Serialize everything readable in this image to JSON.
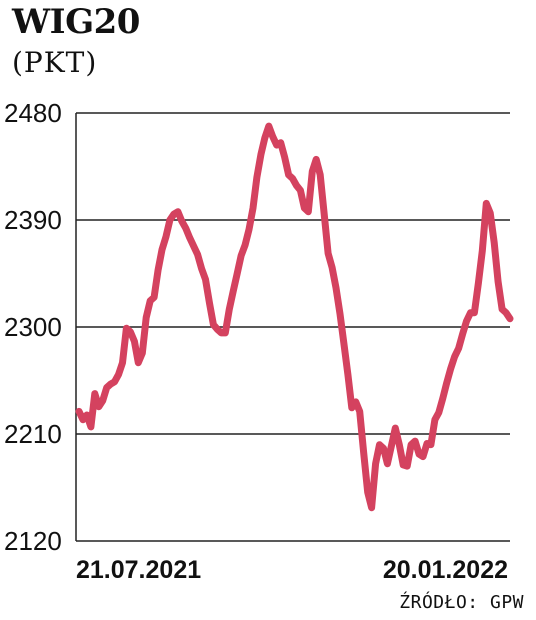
{
  "chart_data": {
    "type": "line",
    "title": "WIG20",
    "ylabel": "(PKT)",
    "source": "ŹRÓDŁO: GPW",
    "ylim": [
      2120,
      2480
    ],
    "yticks": [
      2480,
      2390,
      2300,
      2210,
      2120
    ],
    "xtick_labels": [
      "21.07.2021",
      "20.01.2022"
    ],
    "grid": true,
    "line_color": "#d4425f",
    "series": [
      {
        "values": [
          2229,
          2222,
          2226,
          2216,
          2244,
          2233,
          2238,
          2249,
          2252,
          2254,
          2260,
          2270,
          2299,
          2296,
          2288,
          2270,
          2278,
          2308,
          2322,
          2325,
          2348,
          2365,
          2376,
          2390,
          2395,
          2397,
          2389,
          2383,
          2375,
          2368,
          2361,
          2349,
          2340,
          2320,
          2302,
          2298,
          2295,
          2295,
          2315,
          2330,
          2345,
          2360,
          2369,
          2382,
          2400,
          2426,
          2445,
          2459,
          2469,
          2460,
          2453,
          2455,
          2443,
          2428,
          2425,
          2419,
          2415,
          2400,
          2397,
          2431,
          2441,
          2428,
          2395,
          2362,
          2350,
          2333,
          2311,
          2286,
          2260,
          2232,
          2237,
          2229,
          2194,
          2161,
          2148,
          2185,
          2201,
          2198,
          2185,
          2200,
          2215,
          2201,
          2184,
          2183,
          2201,
          2204,
          2193,
          2191,
          2202,
          2201,
          2222,
          2228,
          2240,
          2253,
          2265,
          2275,
          2282,
          2294,
          2305,
          2312,
          2312,
          2337,
          2364,
          2404,
          2396,
          2371,
          2338,
          2315,
          2312,
          2307
        ]
      }
    ]
  }
}
